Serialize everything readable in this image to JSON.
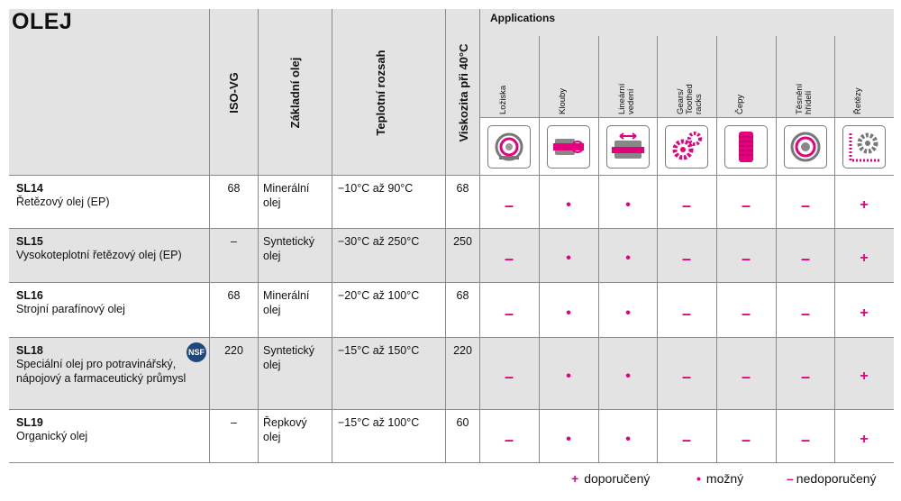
{
  "title": "OLEJ",
  "headers": {
    "iso_vg": "ISO-VG",
    "base_oil": "Základní olej",
    "temp_range": "Teplotní rozsah",
    "viscosity": "Viskozita při 40°C",
    "applications": "Applications"
  },
  "applications": [
    {
      "label": "Ložiska",
      "icon": "bearing-icon"
    },
    {
      "label": "Klouby",
      "icon": "joint-icon"
    },
    {
      "label": "Lineární vedení",
      "icon": "linear-guide-icon"
    },
    {
      "label": "Gears/ Toothed racks",
      "icon": "gears-icon"
    },
    {
      "label": "Čepy",
      "icon": "pin-icon"
    },
    {
      "label": "Těsnění hřídelí",
      "icon": "shaft-seal-icon"
    },
    {
      "label": "Řetězy",
      "icon": "chain-icon"
    }
  ],
  "products": [
    {
      "code": "SL14",
      "name": "Řetězový olej (EP)",
      "iso": "68",
      "base": "Minerální olej",
      "temp": "−10°C až 90°C",
      "visc": "68",
      "nsf": false,
      "ratings": [
        "–",
        "•",
        "•",
        "–",
        "–",
        "–",
        "+"
      ]
    },
    {
      "code": "SL15",
      "name": "Vysokoteplotní řetězový olej (EP)",
      "iso": "–",
      "base": "Syntetický olej",
      "temp": "−30°C až 250°C",
      "visc": "250",
      "nsf": false,
      "ratings": [
        "–",
        "•",
        "•",
        "–",
        "–",
        "–",
        "+"
      ]
    },
    {
      "code": "SL16",
      "name": "Strojní parafínový olej",
      "iso": "68",
      "base": "Minerální olej",
      "temp": "−20°C až 100°C",
      "visc": "68",
      "nsf": false,
      "ratings": [
        "–",
        "•",
        "•",
        "–",
        "–",
        "–",
        "+"
      ]
    },
    {
      "code": "SL18",
      "name": "Speciální olej pro potravinářský, nápojový a farmaceutický průmysl",
      "iso": "220",
      "base": "Syntetický olej",
      "temp": "−15°C až 150°C",
      "visc": "220",
      "nsf": true,
      "nsf_label": "NSF",
      "ratings": [
        "–",
        "•",
        "•",
        "–",
        "–",
        "–",
        "+"
      ]
    },
    {
      "code": "SL19",
      "name": "Organický olej",
      "iso": "–",
      "base": "Řepkový olej",
      "temp": "−15°C až 100°C",
      "visc": "60",
      "nsf": false,
      "ratings": [
        "–",
        "•",
        "•",
        "–",
        "–",
        "–",
        "+"
      ]
    }
  ],
  "legend": {
    "recommended_symbol": "+",
    "recommended": "doporučený",
    "possible_symbol": "•",
    "possible": "možný",
    "not_recommended_symbol": "–",
    "not_recommended": "nedoporučený"
  },
  "colors": {
    "accent": "#e5007e",
    "header_bg": "#e3e3e3",
    "nsf_badge": "#21467c"
  }
}
